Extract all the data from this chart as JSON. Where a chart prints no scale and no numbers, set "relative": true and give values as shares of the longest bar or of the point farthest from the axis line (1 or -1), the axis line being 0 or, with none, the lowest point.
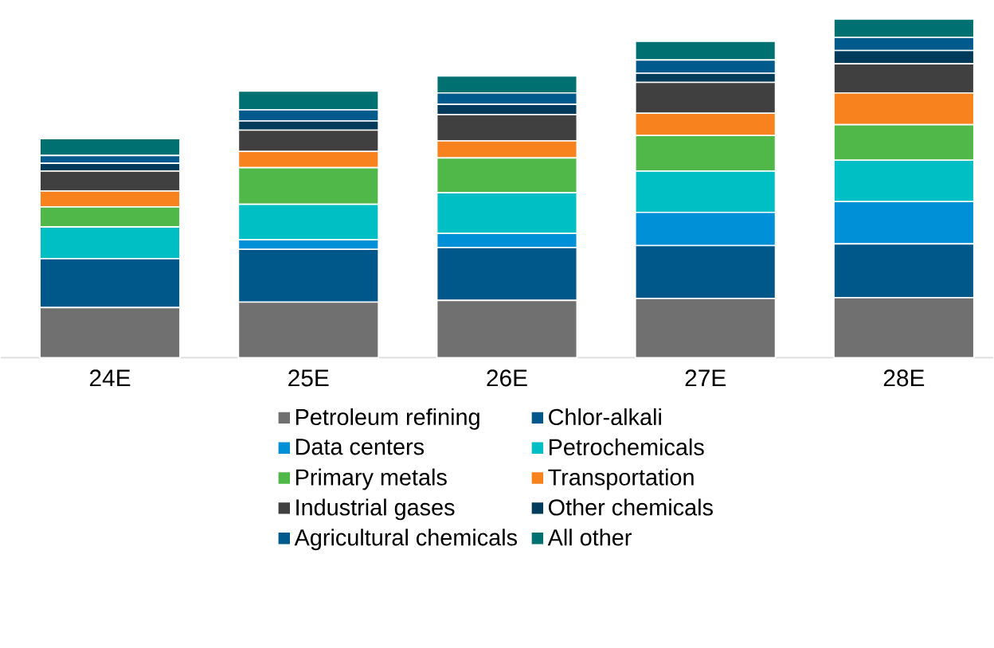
{
  "chart_data": {
    "type": "bar",
    "stacked": true,
    "relative": true,
    "legend": "bottom",
    "categories": [
      "24E",
      "25E",
      "26E",
      "27E",
      "28E"
    ],
    "series": [
      {
        "name": "Petroleum refining",
        "color": "#707070",
        "values": [
          0.148,
          0.164,
          0.169,
          0.175,
          0.177
        ]
      },
      {
        "name": "Chlor-alkali",
        "color": "#00578a",
        "values": [
          0.144,
          0.156,
          0.156,
          0.156,
          0.159
        ]
      },
      {
        "name": "Data centers",
        "color": "#0090d8",
        "values": [
          0,
          0.028,
          0.042,
          0.098,
          0.125
        ]
      },
      {
        "name": "Petrochemicals",
        "color": "#00bfc4",
        "values": [
          0.094,
          0.105,
          0.12,
          0.122,
          0.122
        ]
      },
      {
        "name": "Primary metals",
        "color": "#50b848",
        "values": [
          0.059,
          0.108,
          0.103,
          0.105,
          0.105
        ]
      },
      {
        "name": "Transportation",
        "color": "#f7821e",
        "values": [
          0.047,
          0.048,
          0.05,
          0.066,
          0.094
        ]
      },
      {
        "name": "Industrial gases",
        "color": "#404040",
        "values": [
          0.059,
          0.063,
          0.078,
          0.091,
          0.086
        ]
      },
      {
        "name": "Other chemicals",
        "color": "#003b5c",
        "values": [
          0.023,
          0.027,
          0.03,
          0.027,
          0.039
        ]
      },
      {
        "name": "Agricultural chemicals",
        "color": "#005a8c",
        "values": [
          0.023,
          0.033,
          0.034,
          0.039,
          0.039
        ]
      },
      {
        "name": "All other",
        "color": "#007070",
        "values": [
          0.05,
          0.055,
          0.05,
          0.055,
          0.054
        ]
      }
    ]
  }
}
